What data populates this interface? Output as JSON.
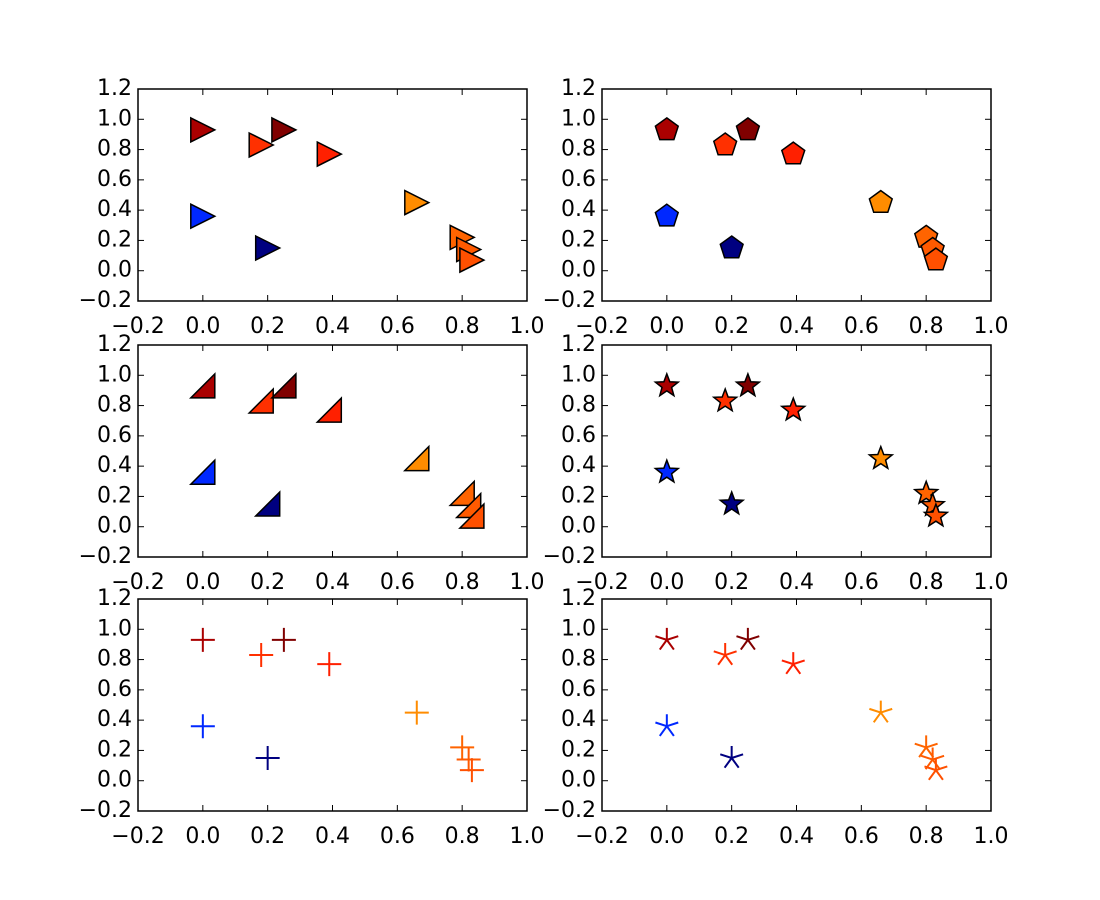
{
  "chart_data": [
    {
      "type": "scatter",
      "marker": "triangle-right",
      "x": [
        0.0,
        0.18,
        0.25,
        0.39,
        0.0,
        0.2,
        0.66,
        0.8,
        0.82,
        0.83
      ],
      "values": [
        0.93,
        0.83,
        0.93,
        0.77,
        0.36,
        0.15,
        0.45,
        0.22,
        0.14,
        0.07
      ],
      "colors": [
        "#aa0000",
        "#ff3000",
        "#800000",
        "#ff2000",
        "#0028ff",
        "#000080",
        "#ff8c00",
        "#ff6400",
        "#ff5a00",
        "#ff5000"
      ],
      "xlim": [
        -0.2,
        1.0
      ],
      "ylim": [
        -0.2,
        1.2
      ],
      "xticks": [
        {
          "value": -0.2,
          "label": "−0.2"
        },
        {
          "value": 0,
          "label": "0.0"
        },
        0.2,
        0.4,
        0.6,
        0.8,
        {
          "value": 1,
          "label": "1.0"
        }
      ],
      "yticks": [
        {
          "value": -0.2,
          "label": "−0.2"
        },
        {
          "value": 0,
          "label": "0.0"
        },
        0.2,
        0.4,
        0.6,
        0.8,
        {
          "value": 1,
          "label": "1.0"
        },
        1.2
      ]
    },
    {
      "type": "scatter",
      "marker": "pentagon",
      "x": [
        0.0,
        0.18,
        0.25,
        0.39,
        0.0,
        0.2,
        0.66,
        0.8,
        0.82,
        0.83
      ],
      "values": [
        0.93,
        0.83,
        0.93,
        0.77,
        0.36,
        0.15,
        0.45,
        0.22,
        0.14,
        0.07
      ],
      "colors": [
        "#aa0000",
        "#ff3000",
        "#800000",
        "#ff2000",
        "#0028ff",
        "#000080",
        "#ff8c00",
        "#ff6400",
        "#ff5a00",
        "#ff5000"
      ],
      "xlim": [
        -0.2,
        1.0
      ],
      "ylim": [
        -0.2,
        1.2
      ],
      "xticks": [
        {
          "value": -0.2,
          "label": "−0.2"
        },
        {
          "value": 0,
          "label": "0.0"
        },
        0.2,
        0.4,
        0.6,
        0.8,
        {
          "value": 1,
          "label": "1.0"
        }
      ],
      "yticks": [
        {
          "value": -0.2,
          "label": "−0.2"
        },
        {
          "value": 0,
          "label": "0.0"
        },
        0.2,
        0.4,
        0.6,
        0.8,
        {
          "value": 1,
          "label": "1.0"
        },
        1.2
      ]
    },
    {
      "type": "scatter",
      "marker": "right-triangle",
      "x": [
        0.0,
        0.18,
        0.25,
        0.39,
        0.0,
        0.2,
        0.66,
        0.8,
        0.82,
        0.83
      ],
      "values": [
        0.93,
        0.83,
        0.93,
        0.77,
        0.36,
        0.15,
        0.45,
        0.22,
        0.14,
        0.07
      ],
      "colors": [
        "#aa0000",
        "#ff3000",
        "#800000",
        "#ff2000",
        "#0028ff",
        "#000080",
        "#ff8c00",
        "#ff6400",
        "#ff5a00",
        "#ff5000"
      ],
      "xlim": [
        -0.2,
        1.0
      ],
      "ylim": [
        -0.2,
        1.2
      ],
      "xticks": [
        {
          "value": -0.2,
          "label": "−0.2"
        },
        {
          "value": 0,
          "label": "0.0"
        },
        0.2,
        0.4,
        0.6,
        0.8,
        {
          "value": 1,
          "label": "1.0"
        }
      ],
      "yticks": [
        {
          "value": -0.2,
          "label": "−0.2"
        },
        {
          "value": 0,
          "label": "0.0"
        },
        0.2,
        0.4,
        0.6,
        0.8,
        {
          "value": 1,
          "label": "1.0"
        },
        1.2
      ]
    },
    {
      "type": "scatter",
      "marker": "star",
      "x": [
        0.0,
        0.18,
        0.25,
        0.39,
        0.0,
        0.2,
        0.66,
        0.8,
        0.82,
        0.83
      ],
      "values": [
        0.93,
        0.83,
        0.93,
        0.77,
        0.36,
        0.15,
        0.45,
        0.22,
        0.14,
        0.07
      ],
      "colors": [
        "#aa0000",
        "#ff3000",
        "#800000",
        "#ff2000",
        "#0028ff",
        "#000080",
        "#ff8c00",
        "#ff6400",
        "#ff5a00",
        "#ff5000"
      ],
      "xlim": [
        -0.2,
        1.0
      ],
      "ylim": [
        -0.2,
        1.2
      ],
      "xticks": [
        {
          "value": -0.2,
          "label": "−0.2"
        },
        {
          "value": 0,
          "label": "0.0"
        },
        0.2,
        0.4,
        0.6,
        0.8,
        {
          "value": 1,
          "label": "1.0"
        }
      ],
      "yticks": [
        {
          "value": -0.2,
          "label": "−0.2"
        },
        {
          "value": 0,
          "label": "0.0"
        },
        0.2,
        0.4,
        0.6,
        0.8,
        {
          "value": 1,
          "label": "1.0"
        },
        1.2
      ]
    },
    {
      "type": "scatter",
      "marker": "plus",
      "x": [
        0.0,
        0.18,
        0.25,
        0.39,
        0.0,
        0.2,
        0.66,
        0.8,
        0.82,
        0.83
      ],
      "values": [
        0.93,
        0.83,
        0.93,
        0.77,
        0.36,
        0.15,
        0.45,
        0.22,
        0.14,
        0.07
      ],
      "colors": [
        "#aa0000",
        "#ff3000",
        "#800000",
        "#ff2000",
        "#0028ff",
        "#000080",
        "#ff8c00",
        "#ff6400",
        "#ff5a00",
        "#ff5000"
      ],
      "xlim": [
        -0.2,
        1.0
      ],
      "ylim": [
        -0.2,
        1.2
      ],
      "xticks": [
        {
          "value": -0.2,
          "label": "−0.2"
        },
        {
          "value": 0,
          "label": "0.0"
        },
        0.2,
        0.4,
        0.6,
        0.8,
        {
          "value": 1,
          "label": "1.0"
        }
      ],
      "yticks": [
        {
          "value": -0.2,
          "label": "−0.2"
        },
        {
          "value": 0,
          "label": "0.0"
        },
        0.2,
        0.4,
        0.6,
        0.8,
        {
          "value": 1,
          "label": "1.0"
        },
        1.2
      ]
    },
    {
      "type": "scatter",
      "marker": "asterisk",
      "x": [
        0.0,
        0.18,
        0.25,
        0.39,
        0.0,
        0.2,
        0.66,
        0.8,
        0.82,
        0.83
      ],
      "values": [
        0.93,
        0.83,
        0.93,
        0.77,
        0.36,
        0.15,
        0.45,
        0.22,
        0.14,
        0.07
      ],
      "colors": [
        "#aa0000",
        "#ff3000",
        "#800000",
        "#ff2000",
        "#0028ff",
        "#000080",
        "#ff8c00",
        "#ff6400",
        "#ff5a00",
        "#ff5000"
      ],
      "xlim": [
        -0.2,
        1.0
      ],
      "ylim": [
        -0.2,
        1.2
      ],
      "xticks": [
        {
          "value": -0.2,
          "label": "−0.2"
        },
        {
          "value": 0,
          "label": "0.0"
        },
        0.2,
        0.4,
        0.6,
        0.8,
        {
          "value": 1,
          "label": "1.0"
        }
      ],
      "yticks": [
        {
          "value": -0.2,
          "label": "−0.2"
        },
        {
          "value": 0,
          "label": "0.0"
        },
        0.2,
        0.4,
        0.6,
        0.8,
        {
          "value": 1,
          "label": "1.0"
        },
        1.2
      ]
    }
  ]
}
